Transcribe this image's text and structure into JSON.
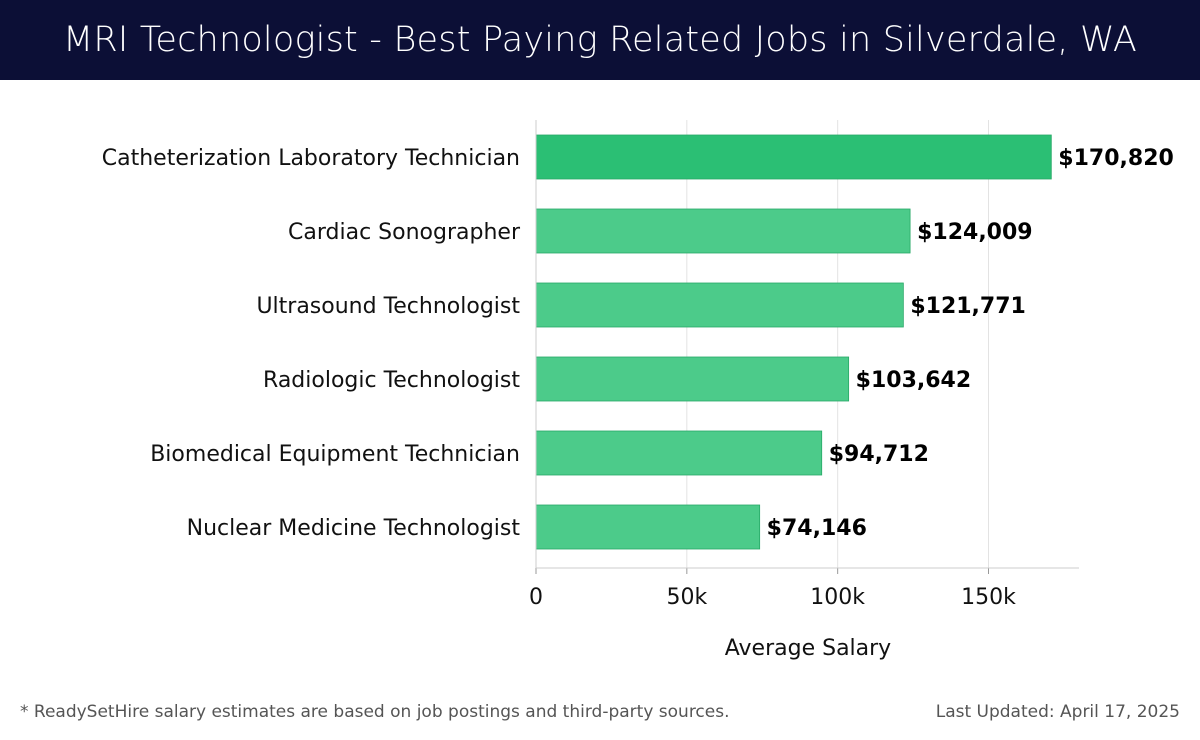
{
  "header": {
    "title": "MRI Technologist - Best Paying Related Jobs in Silverdale, WA"
  },
  "chart_data": {
    "type": "bar",
    "orientation": "horizontal",
    "categories": [
      "Catheterization Laboratory Technician",
      "Cardiac Sonographer",
      "Ultrasound Technologist",
      "Radiologic Technologist",
      "Biomedical Equipment Technician",
      "Nuclear Medicine Technologist"
    ],
    "values": [
      170820,
      124009,
      121771,
      103642,
      94712,
      74146
    ],
    "value_labels": [
      "$170,820",
      "$124,009",
      "$121,771",
      "$103,642",
      "$94,712",
      "$74,146"
    ],
    "xlabel": "Average Salary",
    "xlim": [
      0,
      180000
    ],
    "xticks": [
      0,
      50000,
      100000,
      150000
    ],
    "xtick_labels": [
      "0",
      "50k",
      "100k",
      "150k"
    ],
    "grid": true,
    "colors": {
      "top_bar": "#2bbf74",
      "bar": "#4ccb8a"
    }
  },
  "footer": {
    "note": "* ReadySetHire salary estimates are based on job postings and third-party sources.",
    "updated": "Last Updated: April 17, 2025"
  }
}
